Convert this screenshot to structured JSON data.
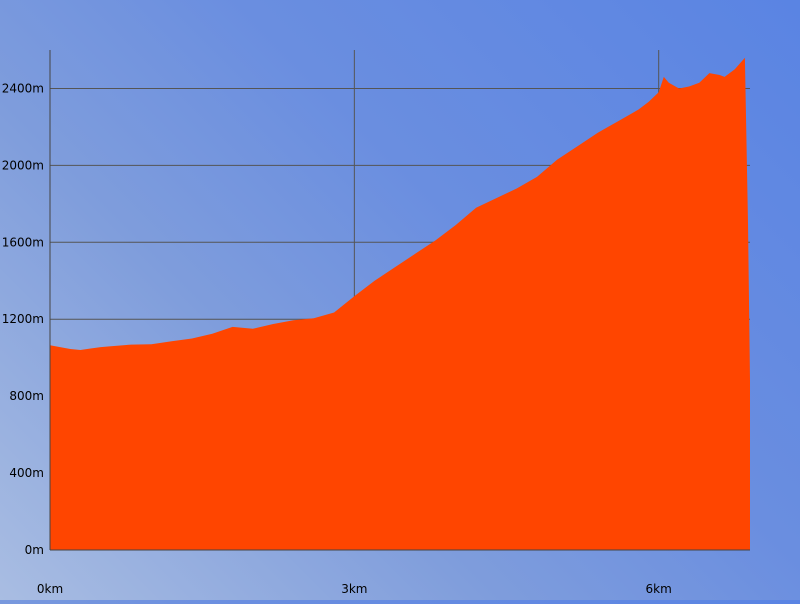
{
  "chart_data": {
    "type": "area",
    "title": "",
    "xlabel": "",
    "ylabel": "",
    "xlim": [
      0,
      6.9
    ],
    "ylim": [
      0,
      2600
    ],
    "grid": true,
    "colors": {
      "fill": "#ff4500",
      "grid": "#555555",
      "axis": "#444444",
      "text": "#000000"
    },
    "x_ticks": [
      {
        "value": 0,
        "label": "0km"
      },
      {
        "value": 3,
        "label": "3km"
      },
      {
        "value": 6,
        "label": "6km"
      }
    ],
    "y_ticks": [
      {
        "value": 0,
        "label": "0m"
      },
      {
        "value": 400,
        "label": "400m"
      },
      {
        "value": 800,
        "label": "800m"
      },
      {
        "value": 1200,
        "label": "1200m"
      },
      {
        "value": 1600,
        "label": "1600m"
      },
      {
        "value": 2000,
        "label": "2000m"
      },
      {
        "value": 2400,
        "label": "2400m"
      }
    ],
    "series": [
      {
        "x": [
          0,
          0.1,
          0.2,
          0.3,
          0.4,
          0.5,
          0.6,
          0.8,
          1.0,
          1.2,
          1.4,
          1.6,
          1.8,
          2.0,
          2.2,
          2.4,
          2.6,
          2.8,
          3.0,
          3.2,
          3.4,
          3.6,
          3.8,
          4.0,
          4.2,
          4.4,
          4.6,
          4.8,
          5.0,
          5.2,
          5.4,
          5.6,
          5.8,
          5.9,
          6.0,
          6.05,
          6.1,
          6.2,
          6.3,
          6.4,
          6.5,
          6.6,
          6.65,
          6.75,
          6.85,
          6.88,
          6.9
        ],
        "values": [
          1065,
          1055,
          1045,
          1040,
          1048,
          1055,
          1060,
          1068,
          1070,
          1085,
          1100,
          1125,
          1160,
          1150,
          1175,
          1195,
          1205,
          1235,
          1320,
          1400,
          1470,
          1540,
          1610,
          1690,
          1780,
          1830,
          1880,
          1940,
          2030,
          2100,
          2170,
          2230,
          2290,
          2330,
          2380,
          2460,
          2430,
          2400,
          2410,
          2430,
          2480,
          2470,
          2460,
          2500,
          2560,
          1700,
          880
        ]
      }
    ]
  }
}
